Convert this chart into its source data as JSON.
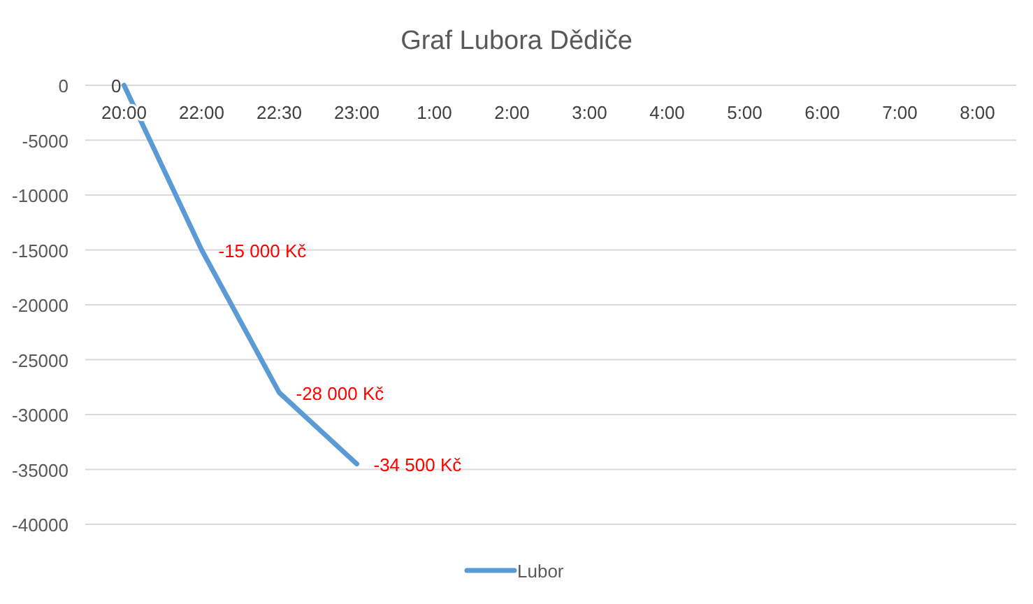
{
  "chart_data": {
    "type": "line",
    "title": "Graf Lubora Dědiče",
    "categories": [
      "20:00",
      "22:00",
      "22:30",
      "23:00",
      "1:00",
      "2:00",
      "3:00",
      "4:00",
      "5:00",
      "6:00",
      "7:00",
      "8:00"
    ],
    "series": [
      {
        "name": "Lubor",
        "color": "#5b9bd5",
        "values": [
          0,
          -15000,
          -28000,
          -34500,
          null,
          null,
          null,
          null,
          null,
          null,
          null,
          null
        ],
        "value_labels": [
          "0",
          "-15 000 Kč",
          "-28 000 Kč",
          "-34 500 Kč",
          null,
          null,
          null,
          null,
          null,
          null,
          null,
          null
        ]
      }
    ],
    "ylim": [
      -40000,
      0
    ],
    "yticks": [
      0,
      -5000,
      -10000,
      -15000,
      -20000,
      -25000,
      -30000,
      -35000,
      -40000
    ],
    "grid": "y",
    "legend": "bottom",
    "marker": "none",
    "line_style": "solid"
  }
}
